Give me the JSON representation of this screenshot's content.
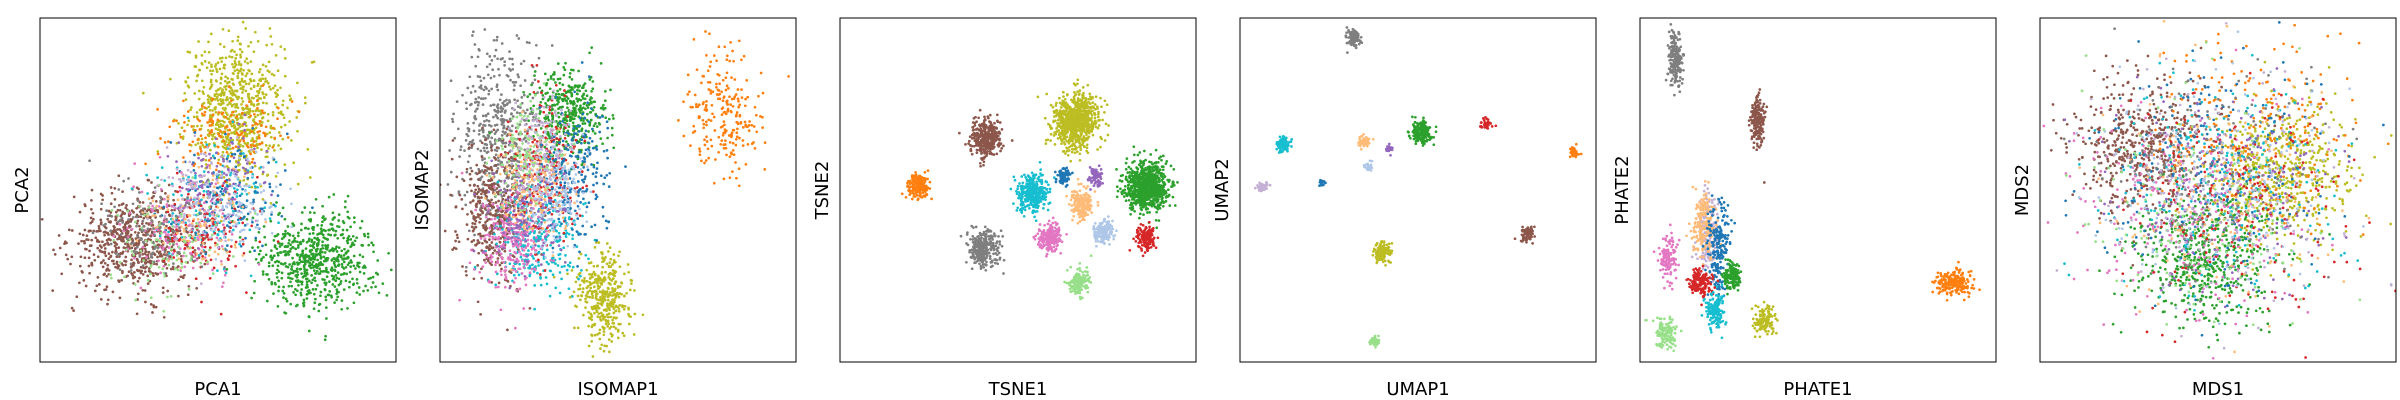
{
  "palette": {
    "blue": "#1f77b4",
    "orange": "#ff7f0e",
    "green": "#2ca02c",
    "red": "#d62728",
    "purple": "#9467bd",
    "brown": "#8c564b",
    "pink": "#e377c2",
    "gray": "#7f7f7f",
    "olive": "#bcbd22",
    "cyan": "#17becf",
    "light_blue": "#aec7e8",
    "light_orange": "#ffbb78",
    "light_green": "#98df8a",
    "lavender": "#c5b0d5"
  },
  "chart_data": [
    {
      "type": "scatter",
      "xlabel": "PCA1",
      "ylabel": "PCA2",
      "xlim": [
        0,
        100
      ],
      "ylim": [
        0,
        100
      ],
      "ticks": "none",
      "grid": false,
      "legend": "none",
      "series": [
        {
          "color": "brown",
          "cx": 27,
          "cy": 35,
          "sx": 9,
          "sy": 7,
          "n": 700
        },
        {
          "color": "green",
          "cx": 78,
          "cy": 30,
          "sx": 8,
          "sy": 7,
          "n": 650
        },
        {
          "color": "olive",
          "cx": 55,
          "cy": 73,
          "sx": 7,
          "sy": 10,
          "n": 750
        },
        {
          "color": "orange",
          "cx": 52,
          "cy": 66,
          "sx": 8,
          "sy": 6,
          "n": 150
        },
        {
          "color": "cyan",
          "cx": 47,
          "cy": 46,
          "sx": 8,
          "sy": 8,
          "n": 160
        },
        {
          "color": "blue",
          "cx": 53,
          "cy": 48,
          "sx": 8,
          "sy": 8,
          "n": 140
        },
        {
          "color": "pink",
          "cx": 40,
          "cy": 38,
          "sx": 8,
          "sy": 8,
          "n": 150
        },
        {
          "color": "red",
          "cx": 48,
          "cy": 38,
          "sx": 7,
          "sy": 7,
          "n": 120
        },
        {
          "color": "light_orange",
          "cx": 43,
          "cy": 42,
          "sx": 7,
          "sy": 7,
          "n": 120
        },
        {
          "color": "purple",
          "cx": 50,
          "cy": 53,
          "sx": 7,
          "sy": 7,
          "n": 110
        },
        {
          "color": "light_blue",
          "cx": 55,
          "cy": 45,
          "sx": 7,
          "sy": 7,
          "n": 100
        },
        {
          "color": "light_green",
          "cx": 36,
          "cy": 33,
          "sx": 8,
          "sy": 7,
          "n": 100
        },
        {
          "color": "gray",
          "cx": 30,
          "cy": 38,
          "sx": 8,
          "sy": 7,
          "n": 100
        },
        {
          "color": "lavender",
          "cx": 45,
          "cy": 50,
          "sx": 7,
          "sy": 7,
          "n": 90
        }
      ]
    },
    {
      "type": "scatter",
      "xlabel": "ISOMAP1",
      "ylabel": "ISOMAP2",
      "xlim": [
        0,
        100
      ],
      "ylim": [
        0,
        100
      ],
      "ticks": "none",
      "grid": false,
      "legend": "none",
      "series": [
        {
          "color": "gray",
          "cx": 17,
          "cy": 65,
          "sx": 6,
          "sy": 14,
          "n": 500
        },
        {
          "color": "green",
          "cx": 36,
          "cy": 72,
          "sx": 5,
          "sy": 6,
          "n": 420
        },
        {
          "color": "brown",
          "cx": 15,
          "cy": 43,
          "sx": 5,
          "sy": 10,
          "n": 420
        },
        {
          "color": "olive",
          "cx": 46,
          "cy": 19,
          "sx": 4,
          "sy": 7,
          "n": 380
        },
        {
          "color": "cyan",
          "cx": 27,
          "cy": 36,
          "sx": 6,
          "sy": 8,
          "n": 320
        },
        {
          "color": "pink",
          "cx": 20,
          "cy": 35,
          "sx": 5,
          "sy": 8,
          "n": 250
        },
        {
          "color": "red",
          "cx": 30,
          "cy": 55,
          "sx": 5,
          "sy": 10,
          "n": 220
        },
        {
          "color": "blue",
          "cx": 38,
          "cy": 55,
          "sx": 5,
          "sy": 10,
          "n": 220
        },
        {
          "color": "light_orange",
          "cx": 26,
          "cy": 50,
          "sx": 5,
          "sy": 8,
          "n": 180
        },
        {
          "color": "purple",
          "cx": 25,
          "cy": 44,
          "sx": 5,
          "sy": 8,
          "n": 160
        },
        {
          "color": "light_blue",
          "cx": 33,
          "cy": 48,
          "sx": 5,
          "sy": 8,
          "n": 160
        },
        {
          "color": "light_green",
          "cx": 24,
          "cy": 60,
          "sx": 5,
          "sy": 8,
          "n": 130
        },
        {
          "color": "lavender",
          "cx": 29,
          "cy": 62,
          "sx": 4,
          "sy": 7,
          "n": 120
        },
        {
          "color": "orange",
          "cx": 80,
          "cy": 72,
          "sx": 5,
          "sy": 9,
          "n": 230
        }
      ]
    },
    {
      "type": "scatter",
      "xlabel": "TSNE1",
      "ylabel": "TSNE2",
      "xlim": [
        0,
        100
      ],
      "ylim": [
        0,
        100
      ],
      "ticks": "none",
      "grid": false,
      "legend": "none",
      "series": [
        {
          "color": "olive",
          "cx": 66,
          "cy": 70,
          "sx": 3.2,
          "sy": 4.0,
          "n": 800
        },
        {
          "color": "brown",
          "cx": 41,
          "cy": 65,
          "sx": 2.2,
          "sy": 2.8,
          "n": 350
        },
        {
          "color": "green",
          "cx": 86,
          "cy": 51,
          "sx": 3.0,
          "sy": 3.6,
          "n": 800
        },
        {
          "color": "orange",
          "cx": 22,
          "cy": 51,
          "sx": 1.4,
          "sy": 1.8,
          "n": 200
        },
        {
          "color": "cyan",
          "cx": 54,
          "cy": 49,
          "sx": 2.0,
          "sy": 2.6,
          "n": 350
        },
        {
          "color": "light_orange",
          "cx": 68,
          "cy": 46,
          "sx": 1.6,
          "sy": 2.0,
          "n": 200
        },
        {
          "color": "blue",
          "cx": 63,
          "cy": 54,
          "sx": 1.0,
          "sy": 1.4,
          "n": 80
        },
        {
          "color": "purple",
          "cx": 72,
          "cy": 54,
          "sx": 1.0,
          "sy": 1.4,
          "n": 80
        },
        {
          "color": "pink",
          "cx": 59,
          "cy": 36,
          "sx": 1.6,
          "sy": 2.0,
          "n": 200
        },
        {
          "color": "light_blue",
          "cx": 74,
          "cy": 38,
          "sx": 1.3,
          "sy": 1.6,
          "n": 150
        },
        {
          "color": "red",
          "cx": 86,
          "cy": 36,
          "sx": 1.4,
          "sy": 1.8,
          "n": 150
        },
        {
          "color": "gray",
          "cx": 40,
          "cy": 33,
          "sx": 2.0,
          "sy": 2.6,
          "n": 300
        },
        {
          "color": "light_green",
          "cx": 67,
          "cy": 23,
          "sx": 1.5,
          "sy": 1.8,
          "n": 150
        }
      ]
    },
    {
      "type": "scatter",
      "xlabel": "UMAP1",
      "ylabel": "UMAP2",
      "xlim": [
        0,
        100
      ],
      "ylim": [
        0,
        100
      ],
      "ticks": "none",
      "grid": false,
      "legend": "none",
      "series": [
        {
          "color": "gray",
          "cx": 32,
          "cy": 94,
          "sx": 1.0,
          "sy": 1.3,
          "n": 100
        },
        {
          "color": "green",
          "cx": 51,
          "cy": 67,
          "sx": 1.4,
          "sy": 1.6,
          "n": 200
        },
        {
          "color": "red",
          "cx": 69,
          "cy": 69,
          "sx": 0.8,
          "sy": 0.8,
          "n": 40
        },
        {
          "color": "orange",
          "cx": 94,
          "cy": 61,
          "sx": 0.6,
          "sy": 0.8,
          "n": 40
        },
        {
          "color": "cyan",
          "cx": 12,
          "cy": 63,
          "sx": 1.0,
          "sy": 1.2,
          "n": 80
        },
        {
          "color": "light_orange",
          "cx": 35,
          "cy": 64,
          "sx": 0.8,
          "sy": 0.8,
          "n": 50
        },
        {
          "color": "purple",
          "cx": 42,
          "cy": 62,
          "sx": 0.6,
          "sy": 0.6,
          "n": 25
        },
        {
          "color": "light_blue",
          "cx": 36,
          "cy": 57,
          "sx": 0.6,
          "sy": 0.7,
          "n": 25
        },
        {
          "color": "blue",
          "cx": 23,
          "cy": 52,
          "sx": 0.5,
          "sy": 0.6,
          "n": 20
        },
        {
          "color": "lavender",
          "cx": 6,
          "cy": 51,
          "sx": 0.8,
          "sy": 0.8,
          "n": 40
        },
        {
          "color": "brown",
          "cx": 81,
          "cy": 37,
          "sx": 1.0,
          "sy": 1.2,
          "n": 80
        },
        {
          "color": "olive",
          "cx": 40,
          "cy": 32,
          "sx": 1.2,
          "sy": 1.6,
          "n": 120
        },
        {
          "color": "light_green",
          "cx": 38,
          "cy": 6,
          "sx": 0.8,
          "sy": 0.8,
          "n": 40
        }
      ]
    },
    {
      "type": "scatter",
      "xlabel": "PHATE1",
      "ylabel": "PHATE2",
      "xlim": [
        0,
        100
      ],
      "ylim": [
        0,
        100
      ],
      "ticks": "none",
      "grid": false,
      "legend": "none",
      "series": [
        {
          "color": "gray",
          "cx": 10,
          "cy": 88,
          "sx": 1.0,
          "sy": 4.0,
          "n": 200
        },
        {
          "color": "brown",
          "cx": 33,
          "cy": 70,
          "sx": 1.0,
          "sy": 4.0,
          "n": 180
        },
        {
          "color": "orange",
          "cx": 88,
          "cy": 23,
          "sx": 3.0,
          "sy": 1.8,
          "n": 200
        },
        {
          "color": "lavender",
          "cx": 19,
          "cy": 38,
          "sx": 1.6,
          "sy": 6.0,
          "n": 180
        },
        {
          "color": "light_orange",
          "cx": 18,
          "cy": 40,
          "sx": 1.6,
          "sy": 5.0,
          "n": 180
        },
        {
          "color": "blue",
          "cx": 22,
          "cy": 33,
          "sx": 1.6,
          "sy": 7.0,
          "n": 200
        },
        {
          "color": "pink",
          "cx": 8,
          "cy": 30,
          "sx": 1.2,
          "sy": 3.0,
          "n": 120
        },
        {
          "color": "red",
          "cx": 17,
          "cy": 23,
          "sx": 1.6,
          "sy": 2.0,
          "n": 150
        },
        {
          "color": "green",
          "cx": 26,
          "cy": 25,
          "sx": 1.2,
          "sy": 2.0,
          "n": 150
        },
        {
          "color": "cyan",
          "cx": 21,
          "cy": 15,
          "sx": 1.4,
          "sy": 2.5,
          "n": 150
        },
        {
          "color": "olive",
          "cx": 35,
          "cy": 12,
          "sx": 1.4,
          "sy": 2.0,
          "n": 120
        },
        {
          "color": "light_green",
          "cx": 7,
          "cy": 8,
          "sx": 1.5,
          "sy": 2.5,
          "n": 120
        }
      ]
    },
    {
      "type": "scatter",
      "xlabel": "MDS1",
      "ylabel": "MDS2",
      "xlim": [
        0,
        100
      ],
      "ylim": [
        0,
        100
      ],
      "ticks": "none",
      "grid": false,
      "legend": "none",
      "series": [
        {
          "color": "brown",
          "cx": 28,
          "cy": 63,
          "sx": 10,
          "sy": 10,
          "n": 500
        },
        {
          "color": "olive",
          "cx": 68,
          "cy": 55,
          "sx": 10,
          "sy": 10,
          "n": 550
        },
        {
          "color": "green",
          "cx": 47,
          "cy": 30,
          "sx": 10,
          "sy": 10,
          "n": 550
        },
        {
          "color": "orange",
          "cx": 60,
          "cy": 70,
          "sx": 14,
          "sy": 14,
          "n": 220
        },
        {
          "color": "cyan",
          "cx": 50,
          "cy": 50,
          "sx": 16,
          "sy": 16,
          "n": 250
        },
        {
          "color": "blue",
          "cx": 48,
          "cy": 55,
          "sx": 16,
          "sy": 16,
          "n": 220
        },
        {
          "color": "pink",
          "cx": 40,
          "cy": 45,
          "sx": 16,
          "sy": 16,
          "n": 200
        },
        {
          "color": "red",
          "cx": 55,
          "cy": 45,
          "sx": 16,
          "sy": 16,
          "n": 200
        },
        {
          "color": "light_orange",
          "cx": 50,
          "cy": 50,
          "sx": 16,
          "sy": 16,
          "n": 180
        },
        {
          "color": "purple",
          "cx": 50,
          "cy": 50,
          "sx": 16,
          "sy": 16,
          "n": 180
        },
        {
          "color": "light_blue",
          "cx": 50,
          "cy": 50,
          "sx": 16,
          "sy": 16,
          "n": 160
        },
        {
          "color": "light_green",
          "cx": 45,
          "cy": 45,
          "sx": 16,
          "sy": 16,
          "n": 160
        },
        {
          "color": "gray",
          "cx": 50,
          "cy": 55,
          "sx": 16,
          "sy": 16,
          "n": 160
        },
        {
          "color": "lavender",
          "cx": 50,
          "cy": 50,
          "sx": 16,
          "sy": 16,
          "n": 140
        }
      ]
    }
  ]
}
